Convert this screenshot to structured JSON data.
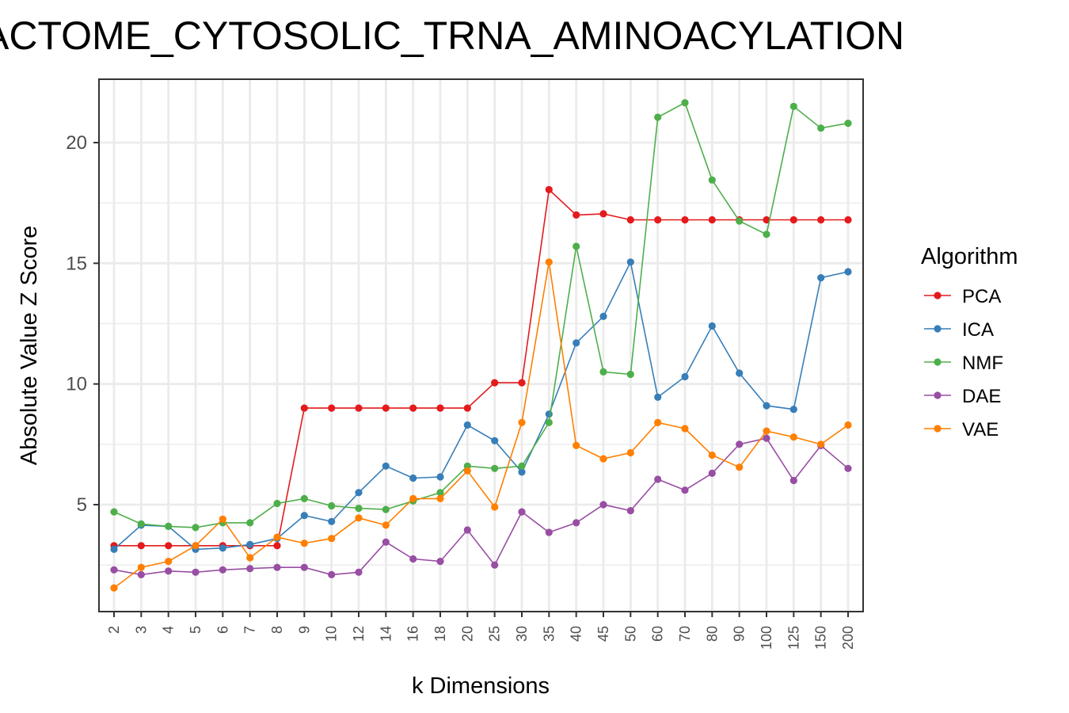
{
  "chart_data": {
    "type": "line",
    "title": "ACTOME_CYTOSOLIC_TRNA_AMINOACYLATION",
    "xlabel": "k Dimensions",
    "ylabel": "Absolute Value Z Score",
    "categories": [
      "2",
      "3",
      "4",
      "5",
      "6",
      "7",
      "8",
      "9",
      "10",
      "12",
      "14",
      "16",
      "18",
      "20",
      "25",
      "30",
      "35",
      "40",
      "45",
      "50",
      "60",
      "70",
      "80",
      "90",
      "100",
      "125",
      "150",
      "200"
    ],
    "ylim": [
      0,
      22.2
    ],
    "yticks": [
      5,
      10,
      15,
      20
    ],
    "ytick_labels": [
      "5",
      "10",
      "15",
      "20"
    ],
    "grid": true,
    "legend": {
      "title": "Algorithm",
      "position": "right"
    },
    "series": [
      {
        "name": "PCA",
        "color": "#e41a1c",
        "values": [
          3.3,
          3.3,
          3.3,
          3.3,
          3.3,
          3.3,
          3.3,
          9.0,
          9.0,
          9.0,
          9.0,
          9.0,
          9.0,
          9.0,
          10.05,
          10.05,
          18.05,
          17.0,
          17.05,
          16.8,
          16.8,
          16.8,
          16.8,
          16.8,
          16.8,
          16.8,
          16.8,
          16.8
        ]
      },
      {
        "name": "ICA",
        "color": "#377eb8",
        "values": [
          3.15,
          4.15,
          4.1,
          3.15,
          3.2,
          3.35,
          3.6,
          4.55,
          4.3,
          5.5,
          6.6,
          6.1,
          6.15,
          8.3,
          7.65,
          6.35,
          8.75,
          11.7,
          12.8,
          15.05,
          9.45,
          10.3,
          12.4,
          10.45,
          9.1,
          8.95,
          14.4,
          14.65
        ]
      },
      {
        "name": "NMF",
        "color": "#4daf4a",
        "values": [
          4.7,
          4.2,
          4.1,
          4.05,
          4.25,
          4.25,
          5.05,
          5.25,
          4.95,
          4.85,
          4.8,
          5.15,
          5.5,
          6.6,
          6.5,
          6.6,
          8.4,
          15.7,
          10.5,
          10.4,
          21.05,
          21.65,
          18.45,
          16.75,
          16.2,
          21.5,
          20.6,
          20.8
        ]
      },
      {
        "name": "DAE",
        "color": "#984ea3",
        "values": [
          2.3,
          2.1,
          2.25,
          2.2,
          2.3,
          2.35,
          2.4,
          2.4,
          2.1,
          2.2,
          3.45,
          2.75,
          2.65,
          3.95,
          2.5,
          4.7,
          3.85,
          4.25,
          5.0,
          4.75,
          6.05,
          5.6,
          6.3,
          7.5,
          7.75,
          6.0,
          7.45,
          6.5
        ]
      },
      {
        "name": "VAE",
        "color": "#ff7f00",
        "values": [
          1.55,
          2.4,
          2.65,
          3.3,
          4.4,
          2.8,
          3.65,
          3.4,
          3.6,
          4.45,
          4.15,
          5.25,
          5.25,
          6.4,
          4.9,
          8.4,
          15.05,
          7.45,
          6.9,
          7.15,
          8.4,
          8.15,
          7.05,
          6.55,
          8.05,
          7.8,
          7.5,
          8.3
        ]
      }
    ]
  }
}
